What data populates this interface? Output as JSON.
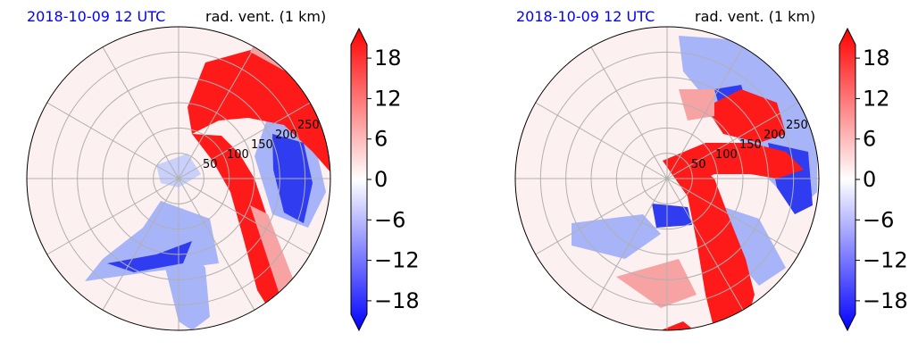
{
  "chart_data": [
    {
      "type": "heatmap",
      "projection": "polar",
      "date_label": "2018-10-09 12 UTC",
      "title": "rad. vent. (1 km)",
      "radius_range": [
        0,
        300
      ],
      "ring_labels": [
        "50",
        "100",
        "150",
        "200",
        "250"
      ],
      "grid": true,
      "colorbar": {
        "range": [
          -20,
          20
        ],
        "extend": "both",
        "ticks": [
          18,
          12,
          6,
          0,
          -6,
          -12,
          -18
        ],
        "tick_labels": [
          "18",
          "12",
          "6",
          "0",
          "−6",
          "−12",
          "−18"
        ],
        "colors": [
          "#0000ff",
          "#ffffff",
          "#ff0000"
        ]
      }
    },
    {
      "type": "heatmap",
      "projection": "polar",
      "date_label": "2018-10-09 12 UTC",
      "title": "rad. vent. (1 km)",
      "radius_range": [
        0,
        300
      ],
      "ring_labels": [
        "50",
        "100",
        "150",
        "200",
        "250"
      ],
      "grid": true,
      "colorbar": {
        "range": [
          -20,
          20
        ],
        "extend": "both",
        "ticks": [
          18,
          12,
          6,
          0,
          -6,
          -12,
          -18
        ],
        "tick_labels": [
          "18",
          "12",
          "6",
          "0",
          "−6",
          "−12",
          "−18"
        ],
        "colors": [
          "#0000ff",
          "#ffffff",
          "#ff0000"
        ]
      }
    }
  ]
}
